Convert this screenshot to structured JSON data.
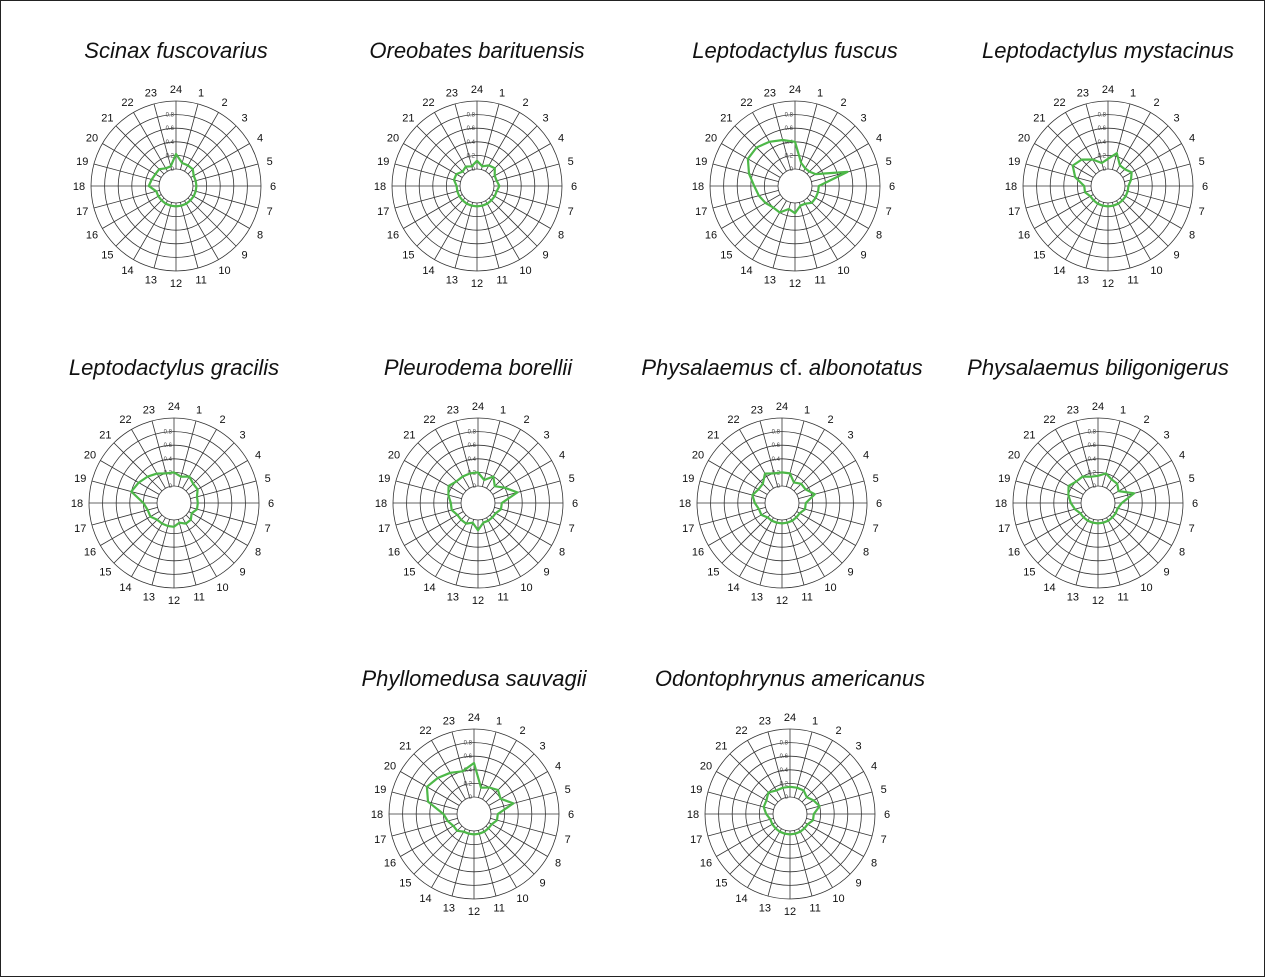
{
  "chart_data": [
    {
      "type": "radar",
      "title": "Scinax fuscovarius",
      "title_parts": [
        {
          "text": "Scinax fuscovarius",
          "italic": true
        }
      ],
      "categories": [
        "24",
        "1",
        "2",
        "3",
        "4",
        "5",
        "6",
        "7",
        "8",
        "9",
        "10",
        "11",
        "12",
        "13",
        "14",
        "15",
        "16",
        "17",
        "18",
        "19",
        "20",
        "21",
        "22",
        "23"
      ],
      "radial_ticks": [
        "0",
        "0.2",
        "0.4",
        "0.6",
        "0.8"
      ],
      "rlim": [
        0,
        1.0
      ],
      "color": "#4db848",
      "values": [
        0.22,
        0.1,
        0.1,
        0.1,
        0.05,
        0.05,
        0.05,
        0.05,
        0.05,
        0.05,
        0.05,
        0.05,
        0.05,
        0.05,
        0.05,
        0.05,
        0.05,
        0.05,
        0.15,
        0.12,
        0.1,
        0.1,
        0.05,
        0.05
      ]
    },
    {
      "type": "radar",
      "title": "Oreobates barituensis",
      "title_parts": [
        {
          "text": "Oreobates barituensis",
          "italic": true
        }
      ],
      "categories": [
        "24",
        "1",
        "2",
        "3",
        "4",
        "5",
        "6",
        "7",
        "8",
        "9",
        "10",
        "11",
        "12",
        "13",
        "14",
        "15",
        "16",
        "17",
        "18",
        "19",
        "20",
        "21",
        "22",
        "23"
      ],
      "radial_ticks": [
        "0",
        "0.2",
        "0.4",
        "0.6",
        "0.8"
      ],
      "rlim": [
        0,
        1.0
      ],
      "color": "#4db848",
      "values": [
        0.12,
        0.05,
        0.1,
        0.12,
        0.05,
        0.05,
        0.08,
        0.05,
        0.05,
        0.05,
        0.05,
        0.05,
        0.05,
        0.05,
        0.05,
        0.05,
        0.05,
        0.05,
        0.05,
        0.1,
        0.1,
        0.05,
        0.08,
        0.05
      ]
    },
    {
      "type": "radar",
      "title": "Leptodactylus fuscus",
      "title_parts": [
        {
          "text": "Leptodactylus fuscus",
          "italic": true
        }
      ],
      "categories": [
        "24",
        "1",
        "2",
        "3",
        "4",
        "5",
        "6",
        "7",
        "8",
        "9",
        "10",
        "11",
        "12",
        "13",
        "14",
        "15",
        "16",
        "17",
        "18",
        "19",
        "20",
        "21",
        "22",
        "23"
      ],
      "radial_ticks": [
        "0",
        "0.2",
        "0.4",
        "0.6",
        "0.8"
      ],
      "rlim": [
        0,
        1.0
      ],
      "color": "#4db848",
      "values": [
        0.4,
        0.1,
        0.05,
        0.05,
        0.1,
        0.55,
        0.1,
        0.1,
        0.1,
        0.1,
        0.05,
        0.05,
        0.15,
        0.1,
        0.2,
        0.2,
        0.25,
        0.3,
        0.35,
        0.45,
        0.55,
        0.55,
        0.5,
        0.45
      ]
    },
    {
      "type": "radar",
      "title": "Leptodactylus mystacinus",
      "title_parts": [
        {
          "text": "Leptodactylus mystacinus",
          "italic": true
        }
      ],
      "categories": [
        "24",
        "1",
        "2",
        "3",
        "4",
        "5",
        "6",
        "7",
        "8",
        "9",
        "10",
        "11",
        "12",
        "13",
        "14",
        "15",
        "16",
        "17",
        "18",
        "19",
        "20",
        "21",
        "22",
        "23"
      ],
      "radial_ticks": [
        "0",
        "0.2",
        "0.4",
        "0.6",
        "0.8"
      ],
      "rlim": [
        0,
        1.0
      ],
      "color": "#4db848",
      "values": [
        0.15,
        0.25,
        0.1,
        0.1,
        0.15,
        0.1,
        0.05,
        0.05,
        0.05,
        0.05,
        0.05,
        0.05,
        0.05,
        0.05,
        0.05,
        0.05,
        0.05,
        0.1,
        0.1,
        0.25,
        0.35,
        0.3,
        0.2,
        0.1
      ]
    },
    {
      "type": "radar",
      "title": "Leptodactylus gracilis",
      "title_parts": [
        {
          "text": "Leptodactylus gracilis",
          "italic": true
        }
      ],
      "categories": [
        "24",
        "1",
        "2",
        "3",
        "4",
        "5",
        "6",
        "7",
        "8",
        "9",
        "10",
        "11",
        "12",
        "13",
        "14",
        "15",
        "16",
        "17",
        "18",
        "19",
        "20",
        "21",
        "22",
        "23"
      ],
      "radial_ticks": [
        "0",
        "0.2",
        "0.4",
        "0.6",
        "0.8"
      ],
      "rlim": [
        0,
        1.0
      ],
      "color": "#4db848",
      "values": [
        0.2,
        0.15,
        0.2,
        0.15,
        0.15,
        0.1,
        0.1,
        0.1,
        0.05,
        0.1,
        0.1,
        0.05,
        0.1,
        0.1,
        0.1,
        0.1,
        0.15,
        0.15,
        0.2,
        0.4,
        0.35,
        0.3,
        0.25,
        0.2
      ]
    },
    {
      "type": "radar",
      "title": "Pleurodema borellii",
      "title_parts": [
        {
          "text": "Pleurodema borellii",
          "italic": true
        }
      ],
      "categories": [
        "24",
        "1",
        "2",
        "3",
        "4",
        "5",
        "6",
        "7",
        "8",
        "9",
        "10",
        "11",
        "12",
        "13",
        "14",
        "15",
        "16",
        "17",
        "18",
        "19",
        "20",
        "21",
        "22",
        "23"
      ],
      "radial_ticks": [
        "0",
        "0.2",
        "0.4",
        "0.6",
        "0.8"
      ],
      "rlim": [
        0,
        1.0
      ],
      "color": "#4db848",
      "values": [
        0.2,
        0.1,
        0.2,
        0.1,
        0.2,
        0.35,
        0.1,
        0.1,
        0.05,
        0.05,
        0.05,
        0.05,
        0.15,
        0.05,
        0.1,
        0.1,
        0.1,
        0.15,
        0.15,
        0.2,
        0.25,
        0.2,
        0.2,
        0.2
      ]
    },
    {
      "type": "radar",
      "title": "Physalaemus cf. albonotatus",
      "title_parts": [
        {
          "text": "Physalaemus",
          "italic": true
        },
        {
          "text": " cf. ",
          "italic": false
        },
        {
          "text": "albonotatus",
          "italic": true
        }
      ],
      "categories": [
        "24",
        "1",
        "2",
        "3",
        "4",
        "5",
        "6",
        "7",
        "8",
        "9",
        "10",
        "11",
        "12",
        "13",
        "14",
        "15",
        "16",
        "17",
        "18",
        "19",
        "20",
        "21",
        "22",
        "23"
      ],
      "radial_ticks": [
        "0",
        "0.2",
        "0.4",
        "0.6",
        "0.8"
      ],
      "rlim": [
        0,
        1.0
      ],
      "color": "#4db848",
      "values": [
        0.2,
        0.2,
        0.1,
        0.15,
        0.15,
        0.25,
        0.1,
        0.1,
        0.05,
        0.05,
        0.05,
        0.05,
        0.05,
        0.05,
        0.05,
        0.05,
        0.1,
        0.1,
        0.15,
        0.2,
        0.15,
        0.15,
        0.25,
        0.2
      ]
    },
    {
      "type": "radar",
      "title": "Physalaemus biligonigerus",
      "title_parts": [
        {
          "text": "Physalaemus biligonigerus",
          "italic": true
        }
      ],
      "categories": [
        "24",
        "1",
        "2",
        "3",
        "4",
        "5",
        "6",
        "7",
        "8",
        "9",
        "10",
        "11",
        "12",
        "13",
        "14",
        "15",
        "16",
        "17",
        "18",
        "19",
        "20",
        "21",
        "22",
        "23"
      ],
      "radial_ticks": [
        "0",
        "0.2",
        "0.4",
        "0.6",
        "0.8"
      ],
      "rlim": [
        0,
        1.0
      ],
      "color": "#4db848",
      "values": [
        0.15,
        0.2,
        0.15,
        0.15,
        0.1,
        0.3,
        0.1,
        0.05,
        0.05,
        0.05,
        0.05,
        0.05,
        0.05,
        0.05,
        0.05,
        0.05,
        0.05,
        0.1,
        0.15,
        0.2,
        0.25,
        0.2,
        0.2,
        0.15
      ]
    },
    {
      "type": "radar",
      "title": "Phyllomedusa sauvagii",
      "title_parts": [
        {
          "text": "Phyllomedusa sauvagii",
          "italic": true
        }
      ],
      "categories": [
        "24",
        "1",
        "2",
        "3",
        "4",
        "5",
        "6",
        "7",
        "8",
        "9",
        "10",
        "11",
        "12",
        "13",
        "14",
        "15",
        "16",
        "17",
        "18",
        "19",
        "20",
        "21",
        "22",
        "23"
      ],
      "radial_ticks": [
        "0",
        "0.2",
        "0.4",
        "0.6",
        "0.8"
      ],
      "rlim": [
        0,
        1.0
      ],
      "color": "#4db848",
      "values": [
        0.5,
        0.15,
        0.2,
        0.25,
        0.2,
        0.35,
        0.1,
        0.1,
        0.05,
        0.05,
        0.05,
        0.05,
        0.05,
        0.05,
        0.05,
        0.1,
        0.1,
        0.15,
        0.2,
        0.45,
        0.55,
        0.5,
        0.45,
        0.4
      ]
    },
    {
      "type": "radar",
      "title": "Odontophrynus americanus",
      "title_parts": [
        {
          "text": "Odontophrynus americanus",
          "italic": true
        }
      ],
      "categories": [
        "24",
        "1",
        "2",
        "3",
        "4",
        "5",
        "6",
        "7",
        "8",
        "9",
        "10",
        "11",
        "12",
        "13",
        "14",
        "15",
        "16",
        "17",
        "18",
        "19",
        "20",
        "21",
        "22",
        "23"
      ],
      "radial_ticks": [
        "0",
        "0.2",
        "0.4",
        "0.6",
        "0.8"
      ],
      "rlim": [
        0,
        1.0
      ],
      "color": "#4db848",
      "values": [
        0.15,
        0.15,
        0.15,
        0.1,
        0.15,
        0.2,
        0.1,
        0.1,
        0.05,
        0.05,
        0.05,
        0.05,
        0.05,
        0.05,
        0.05,
        0.05,
        0.05,
        0.05,
        0.1,
        0.15,
        0.15,
        0.2,
        0.15,
        0.15
      ]
    }
  ]
}
